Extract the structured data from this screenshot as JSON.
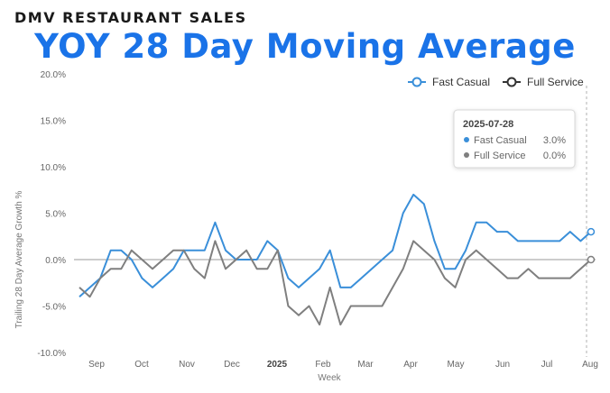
{
  "header": {
    "kicker": "DMV RESTAURANT SALES",
    "title": "YOY 28 Day Moving Average"
  },
  "colors": {
    "title": "#1a73e8",
    "fast_casual": "#3a8fd9",
    "full_service": "#7f7f7f"
  },
  "tooltip": {
    "date": "2025-07-28",
    "rows": [
      {
        "name": "Fast Casual",
        "value": "3.0%"
      },
      {
        "name": "Full Service",
        "value": "0.0%"
      }
    ]
  },
  "chart_data": {
    "type": "line",
    "xlabel": "Week",
    "ylabel": "Trailing 28 Day Average Growth %",
    "ylim": [
      -10,
      20
    ],
    "yticks": [
      "-10.0%",
      "-5.0%",
      "0.0%",
      "5.0%",
      "10.0%",
      "15.0%",
      "20.0%"
    ],
    "xticks": [
      "Sep",
      "Oct",
      "Nov",
      "Dec",
      "2025",
      "Feb",
      "Mar",
      "Apr",
      "May",
      "Jun",
      "Jul",
      "Aug"
    ],
    "x_start": "2024-08-19",
    "x_step_days": 7,
    "legend_position": "top-right",
    "grid": "horizontal zero line only",
    "series": [
      {
        "name": "Fast Casual",
        "values": [
          -4,
          -3,
          -2,
          1,
          1,
          0,
          -2,
          -3,
          -2,
          -1,
          1,
          1,
          1,
          4,
          1,
          0,
          0,
          0,
          2,
          1,
          -2,
          -3,
          -2,
          -1,
          1,
          -3,
          -3,
          -2,
          -1,
          0,
          1,
          5,
          7,
          6,
          2,
          -1,
          -1,
          1,
          4,
          4,
          3,
          3,
          2,
          2,
          2,
          2,
          2,
          3,
          2,
          3
        ]
      },
      {
        "name": "Full Service",
        "values": [
          -3,
          -4,
          -2,
          -1,
          -1,
          1,
          0,
          -1,
          0,
          1,
          1,
          -1,
          -2,
          2,
          -1,
          0,
          1,
          -1,
          -1,
          1,
          -5,
          -6,
          -5,
          -7,
          -3,
          -7,
          -5,
          -5,
          -5,
          -5,
          -3,
          -1,
          2,
          1,
          0,
          -2,
          -3,
          0,
          1,
          0,
          -1,
          -2,
          -2,
          -1,
          -2,
          -2,
          -2,
          -2,
          -1,
          0
        ]
      }
    ]
  }
}
